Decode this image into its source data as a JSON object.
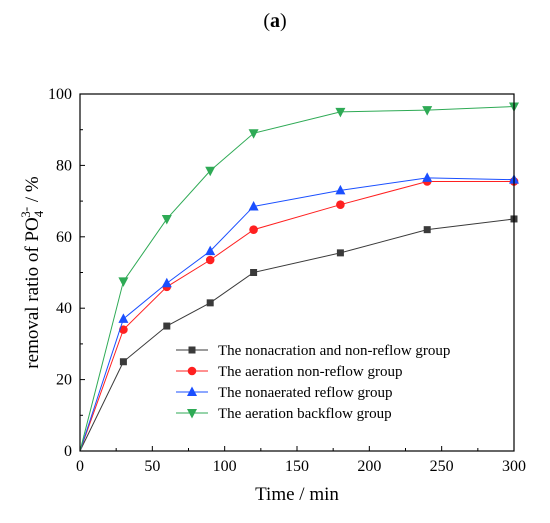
{
  "panel_label": {
    "open": "(",
    "letter": "a",
    "close": ")"
  },
  "chart_data": {
    "type": "line",
    "xlabel": "Time / min",
    "ylabel_prefix": "removal ratio of PO",
    "ylabel_sub": "4",
    "ylabel_sup": "3-",
    "ylabel_suffix": " / %",
    "xlim": [
      0,
      300
    ],
    "ylim": [
      0,
      100
    ],
    "xticks": [
      0,
      50,
      100,
      150,
      200,
      250,
      300
    ],
    "yticks": [
      0,
      20,
      40,
      60,
      80,
      100
    ],
    "grid": false,
    "legend_position": "bottom-right",
    "x": [
      0,
      30,
      60,
      90,
      120,
      180,
      240,
      300
    ],
    "series": [
      {
        "name": "The nonacration and non-reflow group",
        "color": "#3a3a3a",
        "marker": "square",
        "values": [
          0,
          25,
          35,
          41.5,
          50,
          55.5,
          62,
          65
        ]
      },
      {
        "name": "The aeration non-reflow group",
        "color": "#ff2020",
        "marker": "circle",
        "values": [
          0,
          34,
          46,
          53.5,
          62,
          69,
          75.5,
          75.5
        ]
      },
      {
        "name": "The nonaerated reflow group",
        "color": "#1a4fff",
        "marker": "triangle-up",
        "values": [
          0,
          37,
          47,
          56,
          68.5,
          73,
          76.5,
          76
        ]
      },
      {
        "name": "The aeration backflow group",
        "color": "#2eaa55",
        "marker": "triangle-down",
        "values": [
          0,
          47.5,
          65,
          78.5,
          89,
          95,
          95.5,
          96.5
        ]
      }
    ]
  }
}
